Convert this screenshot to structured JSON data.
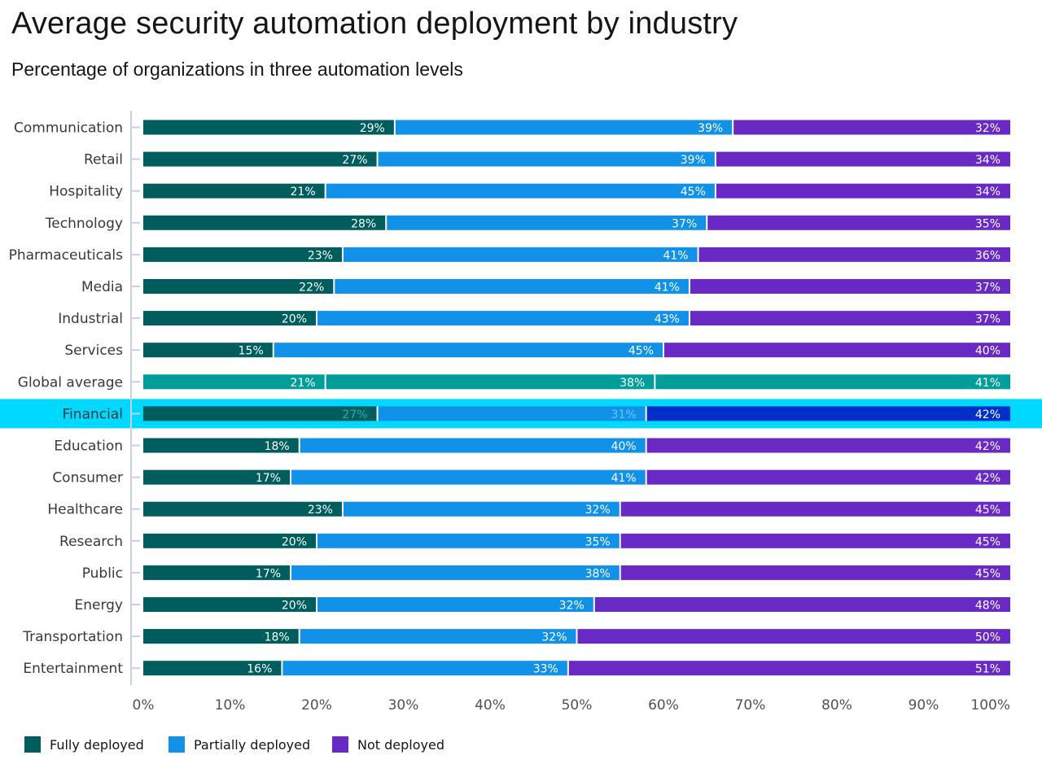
{
  "title": "Average security automation deployment by industry",
  "subtitle": "Percentage of organizations in three automation levels",
  "colors": {
    "fully": "#005d5d",
    "partially": "#1192e8",
    "not": "#6929c4",
    "average": "#009d9a",
    "highlight_band": "#00d9ff",
    "highlight_not": "#0030c8",
    "axis": "#c6d2e0",
    "tick_text": "#525252"
  },
  "legend": [
    {
      "name": "Fully deployed",
      "color": "#005d5d"
    },
    {
      "name": "Partially deployed",
      "color": "#1192e8"
    },
    {
      "name": "Not deployed",
      "color": "#6929c4"
    }
  ],
  "chart_data": {
    "type": "bar",
    "orientation": "horizontal",
    "stacked": true,
    "title": "Average security automation deployment by industry",
    "subtitle": "Percentage of organizations in three automation levels",
    "categories": [
      "Communication",
      "Retail",
      "Hospitality",
      "Technology",
      "Pharmaceuticals",
      "Media",
      "Industrial",
      "Services",
      "Global average",
      "Financial",
      "Education",
      "Consumer",
      "Healthcare",
      "Research",
      "Public",
      "Energy",
      "Transportation",
      "Entertainment"
    ],
    "series": [
      {
        "name": "Fully deployed",
        "values": [
          29,
          27,
          21,
          28,
          23,
          22,
          20,
          15,
          21,
          27,
          18,
          17,
          23,
          20,
          17,
          20,
          18,
          16
        ]
      },
      {
        "name": "Partially deployed",
        "values": [
          39,
          39,
          45,
          37,
          41,
          41,
          43,
          45,
          38,
          31,
          40,
          41,
          32,
          35,
          38,
          32,
          32,
          33
        ]
      },
      {
        "name": "Not deployed",
        "values": [
          32,
          34,
          34,
          35,
          36,
          37,
          37,
          40,
          41,
          42,
          42,
          42,
          45,
          45,
          45,
          48,
          50,
          51
        ]
      }
    ],
    "value_suffix": "%",
    "xlim": [
      0,
      100
    ],
    "x_ticks": [
      "0%",
      "10%",
      "20%",
      "30%",
      "40%",
      "50%",
      "60%",
      "70%",
      "80%",
      "90%",
      "100%"
    ],
    "highlighted_category": "Financial",
    "average_category": "Global average",
    "legend_position": "bottom-left",
    "grid": false
  }
}
